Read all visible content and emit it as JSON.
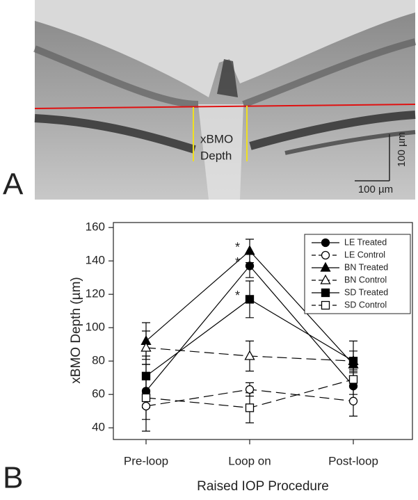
{
  "panel_a": {
    "label": "A",
    "annotation_line1": "xBMO",
    "annotation_line2": "Depth",
    "scale_vertical": "100 µm",
    "scale_horizontal": "100 µm"
  },
  "chart_data": {
    "type": "line",
    "panel_label": "B",
    "x_label": "Raised IOP Procedure",
    "y_label": "xBMO Depth (µm)",
    "categories": [
      "Pre-loop",
      "Loop on",
      "Post-loop"
    ],
    "ylim": [
      33,
      163
    ],
    "yticks": [
      40,
      60,
      80,
      100,
      120,
      140,
      160
    ],
    "legend": "top-right",
    "annotations": [
      "*",
      "*",
      "*"
    ],
    "series": [
      {
        "name": "LE Treated",
        "color": "#000000",
        "marker": "circle",
        "filled": true,
        "dashed": false,
        "values": [
          62,
          137,
          65
        ],
        "errors": [
          10,
          7,
          5
        ]
      },
      {
        "name": "LE Control",
        "color": "#000000",
        "marker": "circle",
        "filled": false,
        "dashed": true,
        "values": [
          53,
          63,
          56
        ],
        "errors": [
          8,
          4,
          9
        ]
      },
      {
        "name": "BN Treated",
        "color": "#000000",
        "marker": "triangle",
        "filled": true,
        "dashed": false,
        "values": [
          92,
          146,
          78
        ],
        "errors": [
          11,
          7,
          3
        ]
      },
      {
        "name": "BN Control",
        "color": "#000000",
        "marker": "triangle",
        "filled": false,
        "dashed": true,
        "values": [
          88,
          83,
          80
        ],
        "errors": [
          10,
          9,
          6
        ]
      },
      {
        "name": "SD Treated",
        "color": "#000000",
        "marker": "square",
        "filled": true,
        "dashed": false,
        "values": [
          71,
          117,
          80
        ],
        "errors": [
          12,
          11,
          12
        ]
      },
      {
        "name": "SD Control",
        "color": "#000000",
        "marker": "square",
        "filled": false,
        "dashed": true,
        "values": [
          58,
          52,
          69
        ],
        "errors": [
          20,
          9,
          4
        ]
      }
    ]
  }
}
